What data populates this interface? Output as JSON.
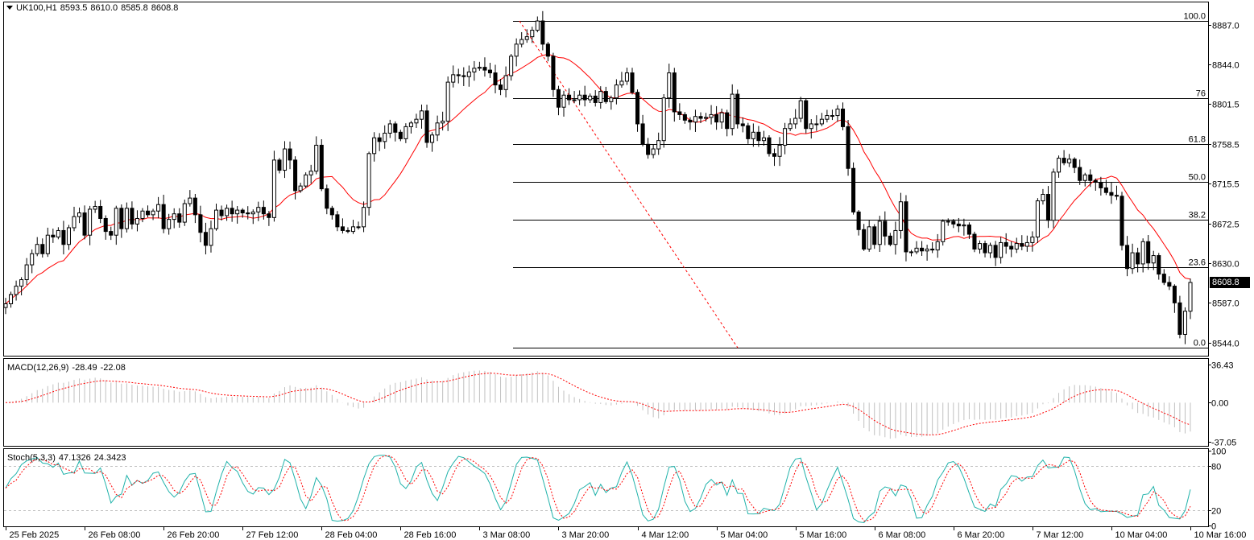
{
  "header": {
    "symbol": "UK100,H1",
    "open": "8593.5",
    "high": "8610.0",
    "low": "8585.8",
    "close": "8608.8"
  },
  "current_price_label": "8608.8",
  "macd_header": {
    "name": "MACD(12,26,9)",
    "main": "-28.49",
    "signal": "-22.08"
  },
  "stoch_header": {
    "name": "Stoch(5,3,3)",
    "k": "47.1326",
    "d": "24.3423"
  },
  "colors": {
    "candle": "#000000",
    "ma": "#ff0000",
    "fib": "#000000",
    "trend": "#ff0000",
    "macd_hist": "#c0c0c0",
    "macd_signal": "#ff0000",
    "stoch_main": "#20b2aa",
    "stoch_signal": "#ff0000",
    "grid": "#c0c0c0"
  },
  "chart_data": [
    {
      "type": "candlestick",
      "name": "UK100,H1",
      "x_labels": [
        "25 Feb 2025",
        "26 Feb 08:00",
        "26 Feb 20:00",
        "27 Feb 12:00",
        "28 Feb 04:00",
        "28 Feb 16:00",
        "3 Mar 08:00",
        "3 Mar 20:00",
        "4 Mar 12:00",
        "5 Mar 04:00",
        "5 Mar 16:00",
        "6 Mar 08:00",
        "6 Mar 20:00",
        "7 Mar 12:00",
        "10 Mar 04:00",
        "10 Mar 16:00"
      ],
      "y_ticks": [
        8887.0,
        8844.0,
        8801.5,
        8758.5,
        8715.5,
        8672.5,
        8630.0,
        8587.0,
        8544.0
      ],
      "ylim": [
        8530.0,
        8911.0
      ],
      "close": [
        8586,
        8596,
        8605,
        8612,
        8628,
        8640,
        8650,
        8640,
        8660,
        8658,
        8665,
        8650,
        8668,
        8680,
        8684,
        8660,
        8688,
        8691,
        8678,
        8664,
        8660,
        8689,
        8667,
        8689,
        8672,
        8678,
        8686,
        8682,
        8686,
        8693,
        8667,
        8677,
        8683,
        8674,
        8694,
        8700,
        8682,
        8663,
        8649,
        8667,
        8687,
        8681,
        8689,
        8683,
        8687,
        8684,
        8683,
        8685,
        8690,
        8683,
        8679,
        8741,
        8730,
        8753,
        8741,
        8708,
        8713,
        8725,
        8729,
        8757,
        8710,
        8689,
        8682,
        8669,
        8665,
        8664,
        8669,
        8669,
        8690,
        8748,
        8765,
        8761,
        8770,
        8780,
        8771,
        8764,
        8777,
        8781,
        8785,
        8794,
        8760,
        8768,
        8781,
        8783,
        8825,
        8833,
        8832,
        8831,
        8836,
        8840,
        8841,
        8838,
        8835,
        8822,
        8817,
        8832,
        8853,
        8866,
        8871,
        8874,
        8881,
        8891,
        8866,
        8853,
        8817,
        8798,
        8811,
        8806,
        8806,
        8811,
        8806,
        8810,
        8803,
        8815,
        8804,
        8808,
        8822,
        8826,
        8835,
        8814,
        8780,
        8758,
        8747,
        8753,
        8762,
        8808,
        8835,
        8793,
        8790,
        8784,
        8782,
        8788,
        8786,
        8787,
        8790,
        8782,
        8792,
        8775,
        8812,
        8780,
        8778,
        8764,
        8771,
        8762,
        8765,
        8748,
        8745,
        8757,
        8775,
        8780,
        8786,
        8805,
        8775,
        8780,
        8780,
        8785,
        8789,
        8789,
        8796,
        8777,
        8732,
        8685,
        8666,
        8645,
        8669,
        8650,
        8675,
        8659,
        8650,
        8665,
        8696,
        8642,
        8642,
        8646,
        8643,
        8645,
        8644,
        8653,
        8675,
        8675,
        8672,
        8670,
        8671,
        8661,
        8645,
        8651,
        8641,
        8649,
        8636,
        8652,
        8648,
        8645,
        8651,
        8648,
        8652,
        8658,
        8697,
        8704,
        8676,
        8728,
        8743,
        8738,
        8742,
        8733,
        8719,
        8725,
        8719,
        8717,
        8711,
        8706,
        8703,
        8702,
        8649,
        8624,
        8641,
        8629,
        8653,
        8630,
        8638,
        8618,
        8609,
        8605,
        8587,
        8553,
        8578,
        8609
      ],
      "ma_period_shown": "MA"
    },
    {
      "type": "line",
      "name": "MACD(12,26,9)",
      "y_ticks": [
        36.43,
        0.0,
        -37.05
      ],
      "ylim": [
        -41.0,
        40.0
      ],
      "series": [
        {
          "name": "-28.49",
          "style": "histogram"
        },
        {
          "name": "-22.08",
          "style": "signal-dotted"
        }
      ]
    },
    {
      "type": "line",
      "name": "Stoch(5,3,3)",
      "y_ticks": [
        100,
        80,
        20,
        0
      ],
      "ylim": [
        0,
        100
      ],
      "levels": [
        80,
        20
      ],
      "series": [
        {
          "name": "47.1326",
          "style": "main"
        },
        {
          "name": "24.3423",
          "style": "signal-dotted"
        }
      ]
    }
  ],
  "fibonacci": {
    "levels": [
      "100.0",
      "76",
      "61.8",
      "50.0",
      "38.2",
      "23.6",
      "0.0"
    ],
    "values": [
      8891.0,
      8807.5,
      8758.5,
      8717.5,
      8676.5,
      8625.5,
      8538.5
    ]
  }
}
